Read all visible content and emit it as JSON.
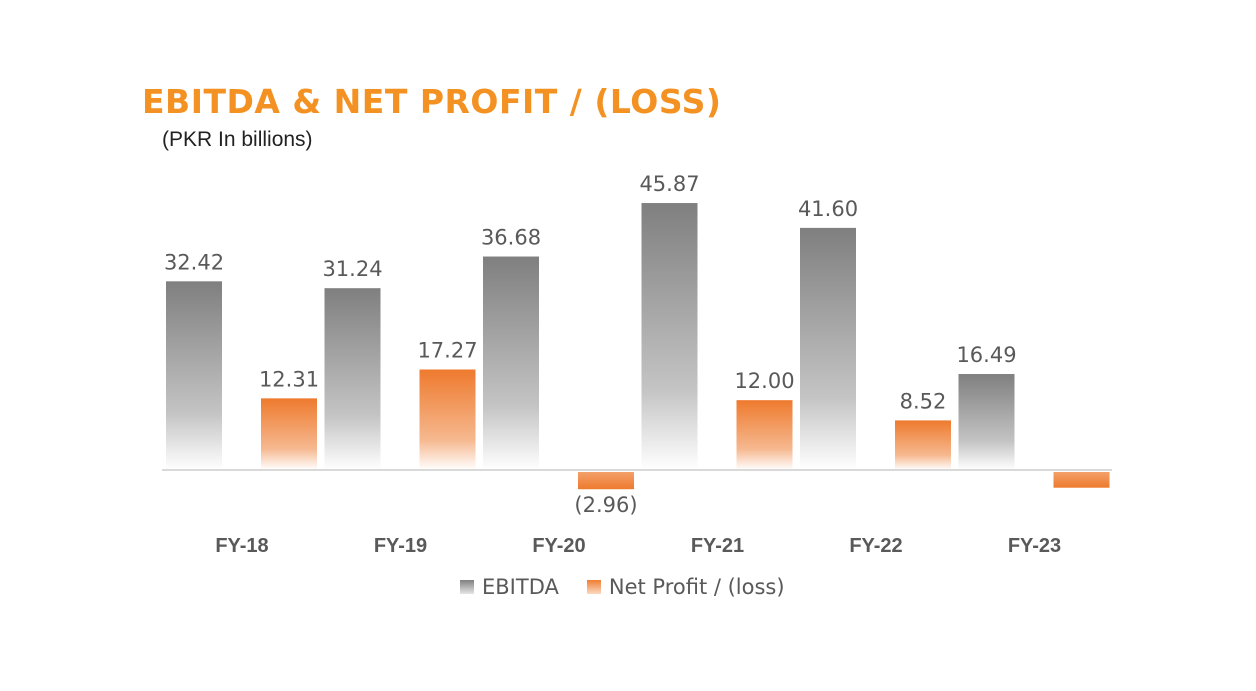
{
  "chart_data": {
    "type": "bar",
    "title": "EBITDA & NET PROFIT / (LOSS)",
    "subtitle": "(PKR In billions)",
    "categories": [
      "FY-18",
      "FY-19",
      "FY-20",
      "FY-21",
      "FY-22",
      "FY-23"
    ],
    "series": [
      {
        "name": "EBITDA",
        "values": [
          32.42,
          31.24,
          36.68,
          45.87,
          41.6,
          16.49
        ],
        "labels": [
          "32.42",
          "31.24",
          "36.68",
          "45.87",
          "41.60",
          "16.49"
        ],
        "color": "#8c8c8c"
      },
      {
        "name": "Net Profit / (loss)",
        "values": [
          12.31,
          17.27,
          -2.96,
          12.0,
          8.52,
          -2.7
        ],
        "labels": [
          "12.31",
          "17.27",
          "(2.96)",
          "12.00",
          "8.52",
          ""
        ],
        "color": "#ef7e33"
      }
    ],
    "ylim": [
      -3.5,
      50
    ],
    "grid": false,
    "legend": "bottom"
  },
  "colors": {
    "title": "#f39223",
    "ebitda_top": "#808080",
    "ebitda_bottom": "#ffffff",
    "np_top": "#ef7e33",
    "np_bottom": "#ffffff",
    "axis": "#d9d9d9"
  }
}
